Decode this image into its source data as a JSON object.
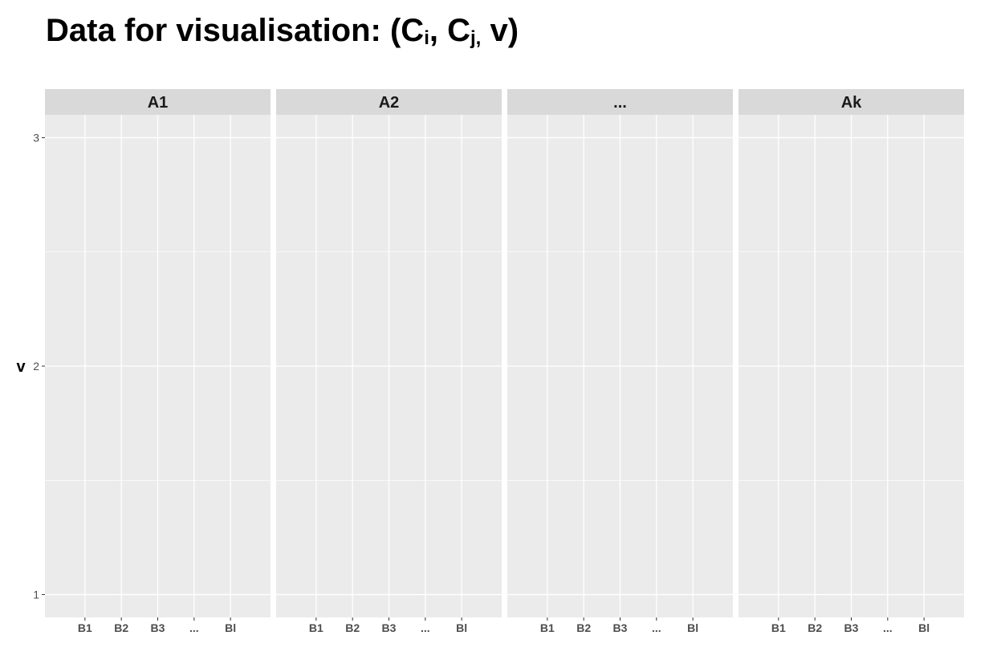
{
  "title": {
    "prefix": "Data for visualisation: (C",
    "sub1": "i",
    "mid": ", C",
    "sub2": "j,",
    "suffix": " v)"
  },
  "chart_data": {
    "type": "scatter",
    "ylabel": "v",
    "ylim": [
      0.9,
      3.1
    ],
    "yticks": [
      1,
      2,
      3
    ],
    "y_minor_grid": [
      1.5,
      2.5
    ],
    "facets": [
      "A1",
      "A2",
      "...",
      "Ak"
    ],
    "categories": [
      "B1",
      "B2",
      "B3",
      "...",
      "Bl"
    ],
    "series": [],
    "grid": true,
    "background": "#ebebeb",
    "strip_background": "#d9d9d9",
    "grid_color": "#ffffff"
  }
}
